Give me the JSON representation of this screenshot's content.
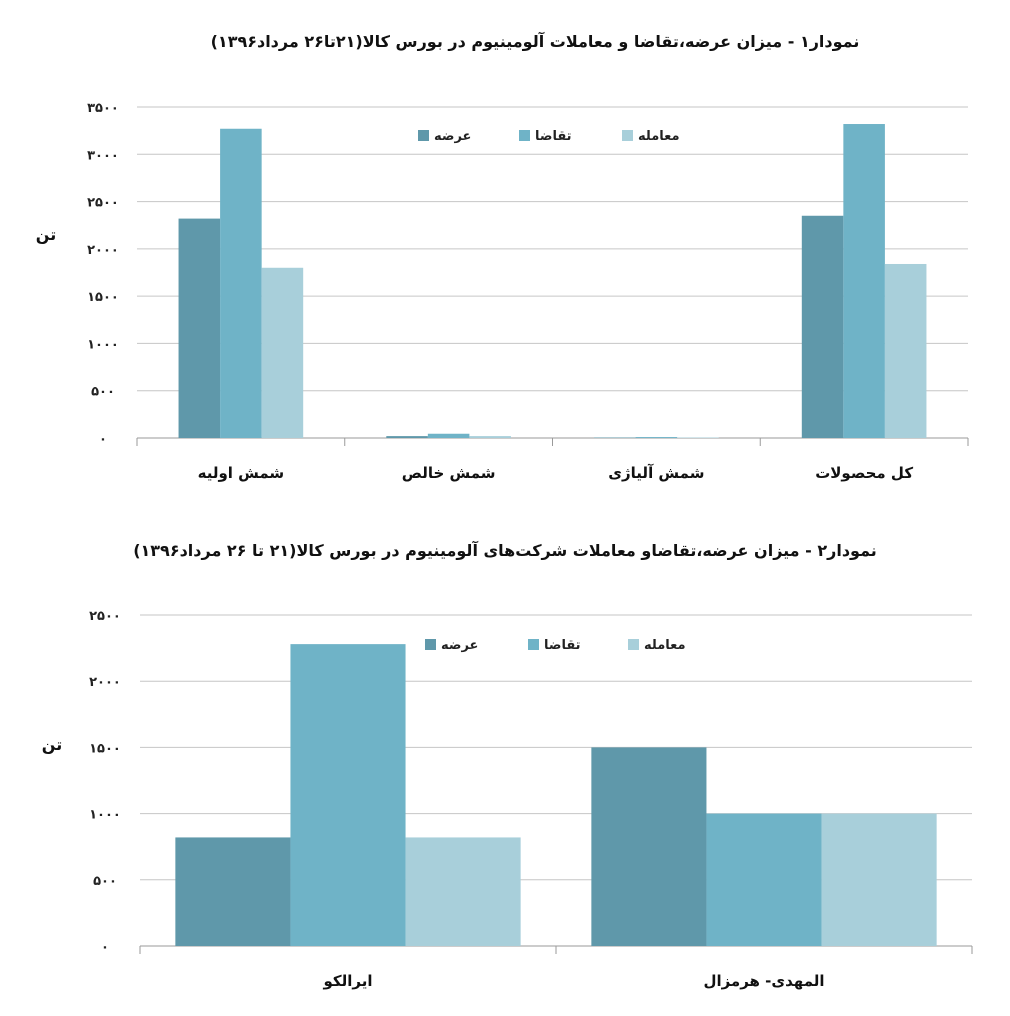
{
  "chart_data": [
    {
      "type": "bar",
      "title": "نمودار۱ - میزان عرضه،تقاضا و معاملات آلومینیوم در بورس کالا(۲۱تا۲۶ مرداد۱۳۹۶)",
      "ylabel": "تن",
      "categories": [
        "شمش اولیه",
        "شمش خالص",
        "شمش آلیاژی",
        "کل محصولات"
      ],
      "series": [
        {
          "name": "عرضه",
          "color": "#5f98aa",
          "values": [
            2320,
            20,
            5,
            2350
          ]
        },
        {
          "name": "تقاضا",
          "color": "#6fb3c7",
          "values": [
            3270,
            45,
            10,
            3320
          ]
        },
        {
          "name": "معامله",
          "color": "#a8cfda",
          "values": [
            1800,
            20,
            5,
            1840
          ]
        }
      ],
      "ylim": [
        0,
        3500
      ],
      "yticks": [
        {
          "value": 0,
          "label": "۰"
        },
        {
          "value": 500,
          "label": "۵۰۰"
        },
        {
          "value": 1000,
          "label": "۱۰۰۰"
        },
        {
          "value": 1500,
          "label": "۱۵۰۰"
        },
        {
          "value": 2000,
          "label": "۲۰۰۰"
        },
        {
          "value": 2500,
          "label": "۲۵۰۰"
        },
        {
          "value": 3000,
          "label": "۳۰۰۰"
        },
        {
          "value": 3500,
          "label": "۳۵۰۰"
        }
      ],
      "grid": true,
      "legend": "top-center"
    },
    {
      "type": "bar",
      "title": "نمودار۲ - میزان عرضه،تقاضاو معاملات شرکت‌های آلومینیوم در بورس کالا(۲۱ تا ۲۶ مرداد۱۳۹۶)",
      "ylabel": "تن",
      "categories": [
        "ایرالکو",
        "المهدی- هرمزال"
      ],
      "series": [
        {
          "name": "عرضه",
          "color": "#5f98aa",
          "values": [
            820,
            1500
          ]
        },
        {
          "name": "تقاضا",
          "color": "#6fb3c7",
          "values": [
            2280,
            1000
          ]
        },
        {
          "name": "معامله",
          "color": "#a8cfda",
          "values": [
            820,
            1000
          ]
        }
      ],
      "ylim": [
        0,
        2500
      ],
      "yticks": [
        {
          "value": 0,
          "label": "۰"
        },
        {
          "value": 500,
          "label": "۵۰۰"
        },
        {
          "value": 1000,
          "label": "۱۰۰۰"
        },
        {
          "value": 1500,
          "label": "۱۵۰۰"
        },
        {
          "value": 2000,
          "label": "۲۰۰۰"
        },
        {
          "value": 2500,
          "label": "۲۵۰۰"
        }
      ],
      "grid": true,
      "legend": "top-center"
    }
  ]
}
